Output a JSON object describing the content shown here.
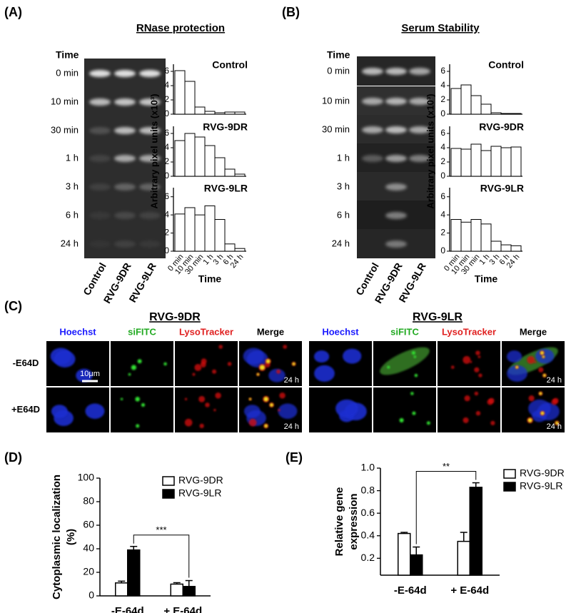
{
  "panel_labels": [
    "(A)",
    "(B)",
    "(C)",
    "(D)",
    "(E)"
  ],
  "gels": [
    {
      "title": "RNase protection",
      "time_header": "Time",
      "times": [
        "0 min",
        "10 min",
        "30 min",
        "1 h",
        "3 h",
        "6 h",
        "24 h"
      ],
      "lanes": [
        "Control",
        "RVG-9DR",
        "RVG-9LR"
      ]
    },
    {
      "title": "Serum Stability",
      "time_header": "Time",
      "times": [
        "0 min",
        "10 min",
        "30 min",
        "1 h",
        "3 h",
        "6 h",
        "24 h"
      ],
      "lanes": [
        "Control",
        "RVG-9DR",
        "RVG-9LR"
      ]
    }
  ],
  "microscopy": {
    "groups": [
      "RVG-9DR",
      "RVG-9LR"
    ],
    "channels": [
      "Hoechst",
      "siFITC",
      "LysoTracker",
      "Merge"
    ],
    "channel_colors": [
      "#1a1aff",
      "#22aa22",
      "#e02020",
      "#000000"
    ],
    "conditions": [
      "-E64D",
      "+E64D"
    ],
    "scale_bar": "10μm",
    "time_stamp": "24 h"
  },
  "chart_data": [
    {
      "type": "bar",
      "title": "Control",
      "values": [
        6.1,
        4.6,
        1.0,
        0.4,
        0.2,
        0.3,
        0.3
      ],
      "color": "#ffffff",
      "ylim": [
        0,
        7
      ],
      "yticks": [
        0,
        2,
        4,
        6
      ]
    },
    {
      "type": "bar",
      "title": "RVG-9DR",
      "values": [
        5.0,
        6.0,
        5.5,
        4.3,
        2.6,
        1.0,
        0.3
      ],
      "color": "#ffffff",
      "ylim": [
        0,
        7
      ],
      "yticks": [
        0,
        2,
        4,
        6
      ],
      "ylabel": "Arbitrary pixel units (x10³)"
    },
    {
      "type": "bar",
      "title": "RVG-9LR",
      "values": [
        4.1,
        4.8,
        4.0,
        5.0,
        3.5,
        0.8,
        0.3
      ],
      "color": "#ffffff",
      "ylim": [
        0,
        7
      ],
      "yticks": [
        0,
        2,
        4,
        6
      ],
      "categories": [
        "0 min",
        "10 min",
        "30 min",
        "1 h",
        "3 h",
        "6 h",
        "24 h"
      ],
      "xlabel": "Time"
    },
    {
      "type": "bar",
      "title": "Control",
      "values": [
        3.6,
        4.1,
        2.6,
        1.4,
        0.2,
        0.1,
        0.1
      ],
      "color": "#ffffff",
      "ylim": [
        0,
        7
      ],
      "yticks": [
        0,
        2,
        4,
        6
      ]
    },
    {
      "type": "bar",
      "title": "RVG-9DR",
      "values": [
        3.9,
        3.8,
        4.5,
        3.6,
        4.2,
        4.0,
        4.1
      ],
      "color": "#ffffff",
      "ylim": [
        0,
        7
      ],
      "yticks": [
        0,
        2,
        4,
        6
      ],
      "ylabel": "Arbitrary pixel units (x10³)"
    },
    {
      "type": "bar",
      "title": "RVG-9LR",
      "values": [
        3.5,
        3.2,
        3.5,
        3.0,
        1.1,
        0.7,
        0.6
      ],
      "color": "#ffffff",
      "ylim": [
        0,
        7
      ],
      "yticks": [
        0,
        2,
        4,
        6
      ],
      "categories": [
        "0 min",
        "10 min",
        "30 min",
        "1 h",
        "3 h",
        "6 h",
        "24 h"
      ],
      "xlabel": "Time"
    },
    {
      "type": "grouped_bar",
      "ylabel": [
        "Cytoplasmic localization",
        "(%)"
      ],
      "categories": [
        "-E-64d",
        "+ E-64d"
      ],
      "series": [
        {
          "name": "RVG-9DR",
          "color": "#ffffff",
          "values": [
            11,
            10
          ],
          "errors": [
            1.5,
            1.2
          ]
        },
        {
          "name": "RVG-9LR",
          "color": "#000000",
          "values": [
            39,
            8
          ],
          "errors": [
            3,
            5
          ]
        }
      ],
      "ylim": [
        0,
        100
      ],
      "yticks": [
        0,
        20,
        40,
        60,
        80,
        100
      ],
      "annotation": "***"
    },
    {
      "type": "grouped_bar",
      "ylabel": [
        "Relative gene",
        "expression"
      ],
      "categories": [
        "-E-64d",
        "+ E-64d"
      ],
      "series": [
        {
          "name": "RVG-9DR",
          "color": "#ffffff",
          "values": [
            0.42,
            0.35
          ],
          "errors": [
            0.01,
            0.08
          ]
        },
        {
          "name": "RVG-9LR",
          "color": "#000000",
          "values": [
            0.23,
            0.83
          ],
          "errors": [
            0.07,
            0.04
          ]
        }
      ],
      "ylim": [
        0.05,
        1.0
      ],
      "yticks": [
        0.2,
        0.4,
        0.6,
        0.8,
        {
          "value": 1.0,
          "label": "1.0"
        }
      ],
      "annotation": "**"
    }
  ]
}
